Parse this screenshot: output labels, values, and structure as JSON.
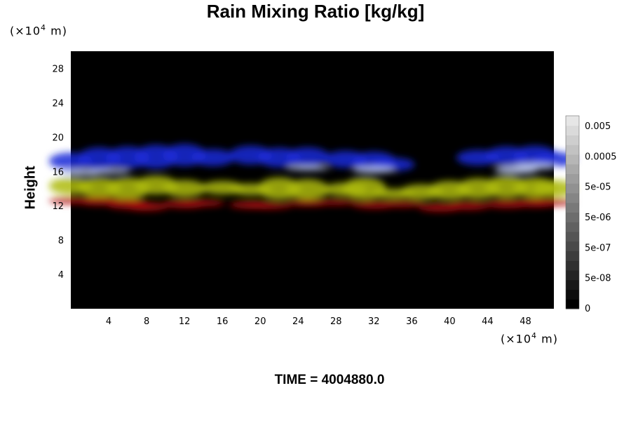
{
  "chart_data": {
    "type": "heatmap",
    "title": "Rain Mixing Ratio [kg/kg]",
    "ylabel": "Height",
    "xlabel": "",
    "x_unit": "(×10⁴ m)",
    "y_unit": "(×10⁴ m)",
    "x_ticks": [
      4,
      8,
      12,
      16,
      20,
      24,
      28,
      32,
      36,
      40,
      44,
      48
    ],
    "y_ticks": [
      4,
      8,
      12,
      16,
      20,
      24,
      28
    ],
    "xlim": [
      0,
      51
    ],
    "ylim": [
      0,
      30
    ],
    "colorbar": {
      "labels": [
        "0.005",
        "0.0005",
        "5e-05",
        "5e-06",
        "5e-07",
        "5e-08",
        "0"
      ],
      "levels": 20
    },
    "series": [
      {
        "color": "#1a2bd8",
        "points": [
          [
            0,
            17.2,
            2.0
          ],
          [
            3,
            17.5,
            2.6
          ],
          [
            6,
            17.6,
            2.6
          ],
          [
            9,
            17.7,
            2.8
          ],
          [
            12,
            17.9,
            2.6
          ],
          [
            15,
            17.6,
            2.0
          ],
          [
            19,
            17.9,
            2.2
          ],
          [
            22,
            17.6,
            2.3
          ],
          [
            25,
            17.7,
            2.2
          ],
          [
            29,
            17.4,
            2.0
          ],
          [
            32,
            17.2,
            2.2
          ],
          [
            34,
            16.8,
            1.6
          ],
          [
            43,
            17.6,
            1.8
          ],
          [
            46,
            17.8,
            2.2
          ],
          [
            49,
            17.8,
            2.4
          ],
          [
            51,
            17.4,
            1.8
          ]
        ]
      },
      {
        "color": "#aebb12",
        "points": [
          [
            0,
            14.3,
            2.0
          ],
          [
            3,
            14.1,
            2.4
          ],
          [
            6,
            14.0,
            2.6
          ],
          [
            9,
            14.4,
            2.2
          ],
          [
            12,
            14.0,
            2.0
          ],
          [
            16,
            14.1,
            1.6
          ],
          [
            19,
            13.9,
            1.4
          ],
          [
            22,
            14.0,
            2.6
          ],
          [
            25,
            13.9,
            2.4
          ],
          [
            29,
            13.9,
            1.6
          ],
          [
            31,
            14.0,
            2.6
          ],
          [
            34,
            13.4,
            1.2
          ],
          [
            37,
            13.6,
            1.8
          ],
          [
            40,
            13.8,
            2.2
          ],
          [
            43,
            14.0,
            2.4
          ],
          [
            46,
            14.2,
            2.6
          ],
          [
            49,
            14.1,
            2.4
          ],
          [
            51,
            14.0,
            2.0
          ]
        ]
      },
      {
        "color": "#b00d10",
        "points": [
          [
            0,
            12.6,
            0.8
          ],
          [
            3,
            12.5,
            1.0
          ],
          [
            6,
            12.2,
            1.2
          ],
          [
            8,
            11.9,
            1.0
          ],
          [
            12,
            12.2,
            1.0
          ],
          [
            14,
            12.3,
            0.8
          ],
          [
            19,
            12.1,
            0.9
          ],
          [
            21,
            12.0,
            0.8
          ],
          [
            25,
            12.3,
            0.8
          ],
          [
            28,
            12.4,
            0.7
          ],
          [
            32,
            12.1,
            0.9
          ],
          [
            35,
            12.2,
            0.8
          ],
          [
            39,
            11.8,
            1.0
          ],
          [
            42,
            12.0,
            1.0
          ],
          [
            46,
            12.2,
            1.0
          ],
          [
            49,
            12.3,
            1.0
          ],
          [
            51,
            12.4,
            0.8
          ]
        ]
      },
      {
        "color": "#bcc8f0",
        "points": [
          [
            1,
            15.9,
            0.8
          ],
          [
            4,
            16.0,
            0.6
          ],
          [
            25,
            16.4,
            0.6
          ],
          [
            32,
            16.2,
            0.8
          ],
          [
            47,
            16.2,
            1.0
          ],
          [
            49,
            16.6,
            0.8
          ]
        ]
      }
    ]
  },
  "time_label": "TIME = 4004880.0"
}
